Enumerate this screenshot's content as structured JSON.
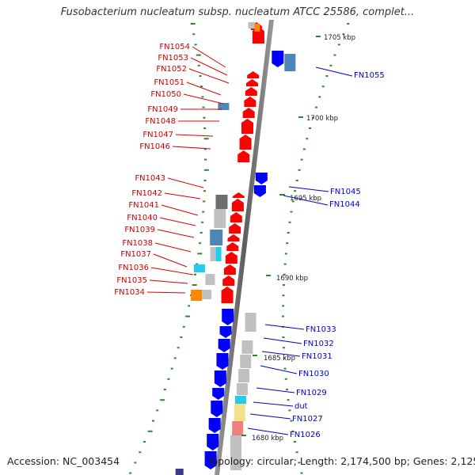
{
  "title": "Fusobacterium nucleatum subsp. nucleatum ATCC 25586, complet...",
  "footer": {
    "accession": "Accession: NC_003454",
    "topology": "Topology: circular; Length: 2,174,500 bp; Genes: 2,125"
  },
  "colors": {
    "backbone": "#7a7a7a",
    "forward_gene": "#ff0000",
    "reverse_gene": "#0000ff",
    "left_label": "#cc0000",
    "right_label": "#0000cc",
    "tick": "#2a8a2a",
    "cog_steelblue": "#4f86b8",
    "cog_gray": "#c0c0c0",
    "cog_darkgray": "#6e6e6e",
    "cog_cyan": "#22ccee",
    "cog_orange": "#ff8800",
    "cog_khaki": "#f3e08a",
    "cog_salmon": "#f08080"
  },
  "kbp_labels": [
    "1705 kbp",
    "1700 kbp",
    "1695 kbp",
    "1690 kbp",
    "1685 kbp",
    "1680 kbp"
  ],
  "left_gene_labels": [
    "FN1054",
    "FN1053",
    "FN1052",
    "FN1051",
    "FN1050",
    "FN1049",
    "FN1048",
    "FN1047",
    "FN1046",
    "FN1043",
    "FN1042",
    "FN1041",
    "FN1040",
    "FN1039",
    "FN1038",
    "FN1037",
    "FN1036",
    "FN1035",
    "FN1034"
  ],
  "right_gene_labels": [
    "FN1055",
    "FN1045",
    "FN1044",
    "FN1033",
    "FN1032",
    "FN1031",
    "FN1030",
    "FN1029",
    "dut",
    "FN1027",
    "FN1026"
  ]
}
